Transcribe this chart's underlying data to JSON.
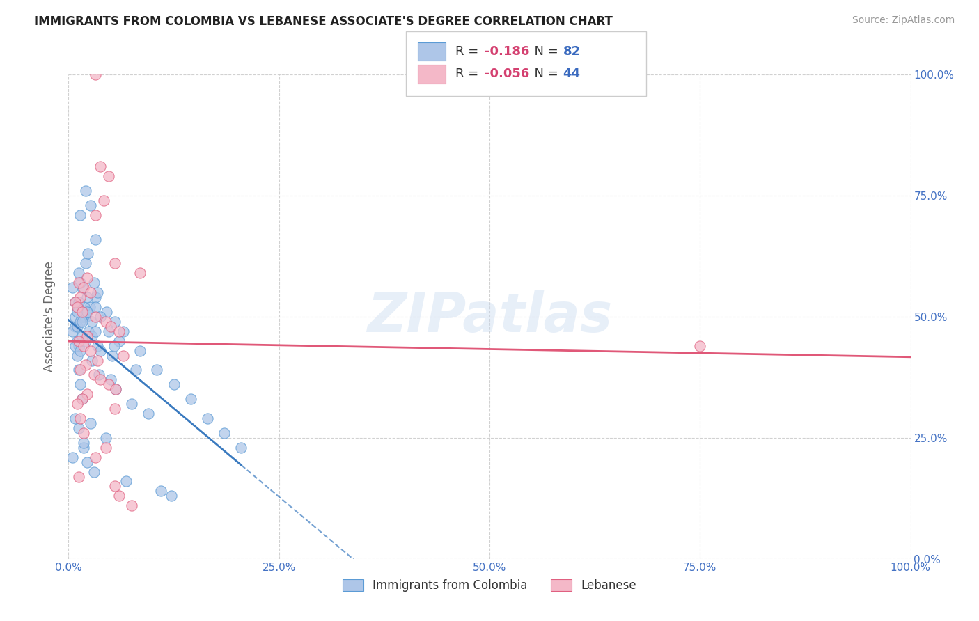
{
  "title": "IMMIGRANTS FROM COLOMBIA VS LEBANESE ASSOCIATE'S DEGREE CORRELATION CHART",
  "source": "Source: ZipAtlas.com",
  "ylabel": "Associate's Degree",
  "legend_label_1": "Immigrants from Colombia",
  "legend_label_2": "Lebanese",
  "R1": -0.186,
  "N1": 82,
  "R2": -0.056,
  "N2": 44,
  "color_blue_fill": "#aec6e8",
  "color_blue_edge": "#5b9bd5",
  "color_pink_fill": "#f4b8c8",
  "color_pink_edge": "#e06080",
  "color_blue_line": "#3a7abf",
  "color_pink_line": "#e05878",
  "watermark": "ZIPatlas",
  "colombia_points": [
    [
      1.0,
      52
    ],
    [
      2.0,
      50
    ],
    [
      2.5,
      52
    ],
    [
      1.8,
      50
    ],
    [
      3.2,
      54
    ],
    [
      0.8,
      48
    ],
    [
      1.5,
      50
    ],
    [
      2.2,
      51
    ],
    [
      1.9,
      52
    ],
    [
      2.8,
      49
    ],
    [
      4.5,
      51
    ],
    [
      5.5,
      49
    ],
    [
      6.5,
      47
    ],
    [
      4.8,
      47
    ],
    [
      3.8,
      50
    ],
    [
      1.0,
      45
    ],
    [
      1.6,
      56
    ],
    [
      3.0,
      57
    ],
    [
      3.4,
      55
    ],
    [
      1.2,
      44
    ],
    [
      0.5,
      47
    ],
    [
      0.8,
      53
    ],
    [
      2.0,
      61
    ],
    [
      2.3,
      63
    ],
    [
      3.2,
      66
    ],
    [
      1.4,
      71
    ],
    [
      2.6,
      73
    ],
    [
      2.0,
      76
    ],
    [
      6.0,
      45
    ],
    [
      8.5,
      43
    ],
    [
      10.5,
      39
    ],
    [
      12.5,
      36
    ],
    [
      14.5,
      33
    ],
    [
      16.5,
      29
    ],
    [
      18.5,
      26
    ],
    [
      20.5,
      23
    ],
    [
      1.0,
      42
    ],
    [
      1.2,
      39
    ],
    [
      1.4,
      36
    ],
    [
      1.6,
      33
    ],
    [
      2.8,
      41
    ],
    [
      3.6,
      38
    ],
    [
      5.0,
      37
    ],
    [
      5.6,
      35
    ],
    [
      7.5,
      32
    ],
    [
      9.5,
      30
    ],
    [
      0.5,
      21
    ],
    [
      1.8,
      23
    ],
    [
      2.2,
      20
    ],
    [
      3.0,
      18
    ],
    [
      6.8,
      16
    ],
    [
      11.0,
      14
    ],
    [
      12.2,
      13
    ],
    [
      1.2,
      59
    ],
    [
      1.4,
      57
    ],
    [
      2.2,
      54
    ],
    [
      3.2,
      52
    ],
    [
      0.8,
      50
    ],
    [
      1.0,
      48
    ],
    [
      1.6,
      46
    ],
    [
      2.0,
      45
    ],
    [
      2.4,
      47
    ],
    [
      3.4,
      44
    ],
    [
      5.2,
      42
    ],
    [
      8.0,
      39
    ],
    [
      0.8,
      29
    ],
    [
      1.2,
      27
    ],
    [
      1.8,
      24
    ],
    [
      2.6,
      28
    ],
    [
      4.4,
      25
    ],
    [
      1.0,
      51
    ],
    [
      1.4,
      49
    ],
    [
      2.8,
      46
    ],
    [
      3.8,
      43
    ],
    [
      0.5,
      56
    ],
    [
      1.2,
      53
    ],
    [
      2.2,
      51
    ],
    [
      1.6,
      49
    ],
    [
      3.2,
      47
    ],
    [
      5.4,
      44
    ],
    [
      0.8,
      44
    ],
    [
      1.4,
      43
    ]
  ],
  "lebanese_points": [
    [
      3.2,
      100
    ],
    [
      3.8,
      81
    ],
    [
      4.8,
      79
    ],
    [
      4.2,
      74
    ],
    [
      3.2,
      71
    ],
    [
      5.5,
      61
    ],
    [
      8.5,
      59
    ],
    [
      2.2,
      58
    ],
    [
      1.2,
      57
    ],
    [
      1.8,
      56
    ],
    [
      2.6,
      55
    ],
    [
      1.4,
      54
    ],
    [
      0.8,
      53
    ],
    [
      1.0,
      52
    ],
    [
      1.6,
      51
    ],
    [
      3.2,
      50
    ],
    [
      4.4,
      49
    ],
    [
      5.0,
      48
    ],
    [
      6.0,
      47
    ],
    [
      2.2,
      46
    ],
    [
      1.2,
      45
    ],
    [
      1.8,
      44
    ],
    [
      2.6,
      43
    ],
    [
      6.5,
      42
    ],
    [
      3.4,
      41
    ],
    [
      2.0,
      40
    ],
    [
      1.4,
      39
    ],
    [
      3.0,
      38
    ],
    [
      3.8,
      37
    ],
    [
      4.8,
      36
    ],
    [
      5.6,
      35
    ],
    [
      2.2,
      34
    ],
    [
      1.6,
      33
    ],
    [
      1.0,
      32
    ],
    [
      5.5,
      31
    ],
    [
      1.4,
      29
    ],
    [
      1.8,
      26
    ],
    [
      4.4,
      23
    ],
    [
      3.2,
      21
    ],
    [
      1.2,
      17
    ],
    [
      5.5,
      15
    ],
    [
      6.0,
      13
    ],
    [
      7.5,
      11
    ],
    [
      75.0,
      44
    ]
  ]
}
